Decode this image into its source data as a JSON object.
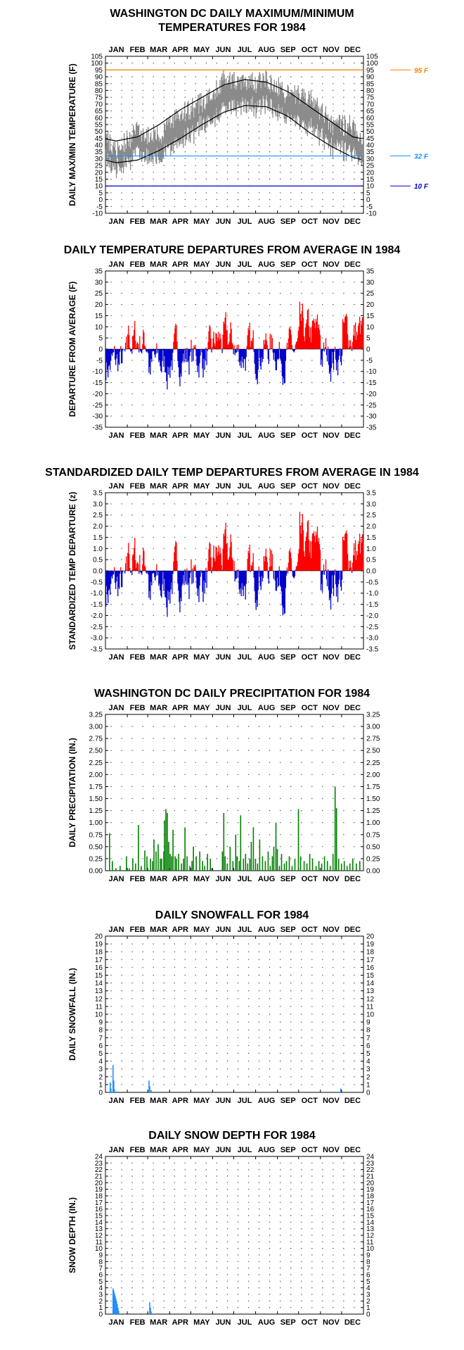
{
  "chart_data": [
    {
      "id": "maxmin",
      "type": "line",
      "title_lines": [
        "WASHINGTON DC DAILY MAXIMUM/MINIMUM",
        "TEMPERATURES FOR 1984"
      ],
      "ylabel": "DAILY MAX/MIN TEMPERATURE (F)",
      "months": [
        "JAN",
        "FEB",
        "MAR",
        "APR",
        "MAY",
        "JUN",
        "JUL",
        "AUG",
        "SEP",
        "OCT",
        "NOV",
        "DEC"
      ],
      "ylim": [
        -10,
        105
      ],
      "ystep": 5,
      "grid": "dotted",
      "ref_lines": [
        {
          "value": 95,
          "label": "95 F",
          "color": "#ff7f00"
        },
        {
          "value": 32,
          "label": "32 F",
          "color": "#1e90ff"
        },
        {
          "value": 10,
          "label": "10 F",
          "color": "#0000cd"
        }
      ],
      "normal_max_monthly": [
        43,
        46,
        55,
        66,
        75,
        84,
        88,
        86,
        79,
        68,
        57,
        46
      ],
      "normal_min_monthly": [
        27,
        29,
        36,
        45,
        55,
        64,
        69,
        68,
        61,
        49,
        39,
        31
      ],
      "daily_max_monthly_mean": [
        36,
        50,
        46,
        63,
        71,
        88,
        85,
        87,
        77,
        75,
        55,
        54
      ],
      "daily_min_monthly_mean": [
        22,
        34,
        30,
        43,
        54,
        67,
        68,
        69,
        59,
        54,
        38,
        36
      ],
      "highest_max": 96,
      "lowest_min": 4
    },
    {
      "id": "departure",
      "type": "bar",
      "title_lines": [
        "DAILY TEMPERATURE DEPARTURES FROM AVERAGE IN 1984"
      ],
      "ylabel": "DEPARTURE FROM AVERAGE (F)",
      "months": [
        "JAN",
        "FEB",
        "MAR",
        "APR",
        "MAY",
        "JUN",
        "JUL",
        "AUG",
        "SEP",
        "OCT",
        "NOV",
        "DEC"
      ],
      "ylim": [
        -35,
        35
      ],
      "ystep": 5,
      "grid": "dotted",
      "colors": {
        "positive": "#ff0000",
        "negative": "#0000cd"
      },
      "monthly_mean_departure": [
        -7,
        4,
        -7,
        -3,
        -4,
        3,
        -2,
        1,
        -2,
        6,
        -3,
        7
      ],
      "max_positive": 24,
      "max_negative": -22
    },
    {
      "id": "standardized",
      "type": "bar",
      "title_lines": [
        "STANDARDIZED DAILY TEMP DEPARTURES FROM AVERAGE IN 1984"
      ],
      "ylabel": "STANDARDIZED TEMP DEPARTURE (z)",
      "months": [
        "JAN",
        "FEB",
        "MAR",
        "APR",
        "MAY",
        "JUN",
        "JUL",
        "AUG",
        "SEP",
        "OCT",
        "NOV",
        "DEC"
      ],
      "ylim": [
        -3.5,
        3.5
      ],
      "ystep": 0.5,
      "grid": "dotted",
      "colors": {
        "positive": "#ff0000",
        "negative": "#0000cd"
      },
      "monthly_mean_z": [
        -0.8,
        0.5,
        -0.8,
        -0.3,
        -0.4,
        0.6,
        -0.4,
        0.3,
        -0.4,
        0.9,
        -0.4,
        0.8
      ],
      "max_positive": 2.8,
      "max_negative": -2.5
    },
    {
      "id": "precip",
      "type": "bar",
      "title_lines": [
        "WASHINGTON DC DAILY PRECIPITATION FOR 1984"
      ],
      "ylabel": "DAILY PRECIPITATION (IN.)",
      "months": [
        "JAN",
        "FEB",
        "MAR",
        "APR",
        "MAY",
        "JUN",
        "JUL",
        "AUG",
        "SEP",
        "OCT",
        "NOV",
        "DEC"
      ],
      "ylim": [
        0,
        3.25
      ],
      "ystep": 0.25,
      "grid": "dotted",
      "color": "#008000",
      "events": [
        {
          "day": 5,
          "value": 0.78
        },
        {
          "day": 9,
          "value": 0.2
        },
        {
          "day": 14,
          "value": 0.05
        },
        {
          "day": 20,
          "value": 0.1
        },
        {
          "day": 29,
          "value": 0.3
        },
        {
          "day": 33,
          "value": 0.05
        },
        {
          "day": 38,
          "value": 0.25
        },
        {
          "day": 42,
          "value": 0.15
        },
        {
          "day": 46,
          "value": 0.95
        },
        {
          "day": 50,
          "value": 0.1
        },
        {
          "day": 55,
          "value": 0.42
        },
        {
          "day": 58,
          "value": 0.3
        },
        {
          "day": 63,
          "value": 0.25
        },
        {
          "day": 66,
          "value": 0.2
        },
        {
          "day": 68,
          "value": 0.65
        },
        {
          "day": 71,
          "value": 0.4
        },
        {
          "day": 74,
          "value": 0.55
        },
        {
          "day": 77,
          "value": 0.25
        },
        {
          "day": 79,
          "value": 0.25
        },
        {
          "day": 82,
          "value": 0.4
        },
        {
          "day": 83,
          "value": 1.05
        },
        {
          "day": 85,
          "value": 1.28
        },
        {
          "day": 87,
          "value": 1.2
        },
        {
          "day": 89,
          "value": 0.6
        },
        {
          "day": 91,
          "value": 0.35
        },
        {
          "day": 93,
          "value": 0.3
        },
        {
          "day": 95,
          "value": 0.85
        },
        {
          "day": 98,
          "value": 0.3
        },
        {
          "day": 100,
          "value": 0.25
        },
        {
          "day": 103,
          "value": 0.35
        },
        {
          "day": 107,
          "value": 0.15
        },
        {
          "day": 110,
          "value": 0.25
        },
        {
          "day": 112,
          "value": 0.9
        },
        {
          "day": 115,
          "value": 0.3
        },
        {
          "day": 119,
          "value": 0.1
        },
        {
          "day": 122,
          "value": 0.2
        },
        {
          "day": 124,
          "value": 0.5
        },
        {
          "day": 128,
          "value": 0.3
        },
        {
          "day": 133,
          "value": 0.4
        },
        {
          "day": 137,
          "value": 0.2
        },
        {
          "day": 140,
          "value": 0.1
        },
        {
          "day": 144,
          "value": 0.35
        },
        {
          "day": 148,
          "value": 0.25
        },
        {
          "day": 150,
          "value": 0.05
        },
        {
          "day": 165,
          "value": 0.4
        },
        {
          "day": 167,
          "value": 1.2
        },
        {
          "day": 169,
          "value": 0.3
        },
        {
          "day": 172,
          "value": 0.15
        },
        {
          "day": 176,
          "value": 0.5
        },
        {
          "day": 180,
          "value": 0.2
        },
        {
          "day": 184,
          "value": 0.75
        },
        {
          "day": 186,
          "value": 0.3
        },
        {
          "day": 189,
          "value": 0.2
        },
        {
          "day": 191,
          "value": 1.15
        },
        {
          "day": 195,
          "value": 0.25
        },
        {
          "day": 198,
          "value": 0.35
        },
        {
          "day": 201,
          "value": 0.15
        },
        {
          "day": 204,
          "value": 0.25
        },
        {
          "day": 206,
          "value": 0.6
        },
        {
          "day": 209,
          "value": 0.9
        },
        {
          "day": 212,
          "value": 0.25
        },
        {
          "day": 215,
          "value": 0.15
        },
        {
          "day": 218,
          "value": 0.65
        },
        {
          "day": 222,
          "value": 0.3
        },
        {
          "day": 226,
          "value": 0.2
        },
        {
          "day": 230,
          "value": 0.4
        },
        {
          "day": 233,
          "value": 0.1
        },
        {
          "day": 236,
          "value": 0.3
        },
        {
          "day": 238,
          "value": 0.5
        },
        {
          "day": 241,
          "value": 1.0
        },
        {
          "day": 243,
          "value": 0.45
        },
        {
          "day": 246,
          "value": 0.1
        },
        {
          "day": 249,
          "value": 0.35
        },
        {
          "day": 253,
          "value": 0.15
        },
        {
          "day": 256,
          "value": 0.2
        },
        {
          "day": 260,
          "value": 0.3
        },
        {
          "day": 264,
          "value": 0.1
        },
        {
          "day": 268,
          "value": 0.25
        },
        {
          "day": 273,
          "value": 1.28
        },
        {
          "day": 276,
          "value": 0.3
        },
        {
          "day": 281,
          "value": 0.2
        },
        {
          "day": 285,
          "value": 0.15
        },
        {
          "day": 289,
          "value": 0.35
        },
        {
          "day": 293,
          "value": 0.25
        },
        {
          "day": 298,
          "value": 0.1
        },
        {
          "day": 302,
          "value": 0.2
        },
        {
          "day": 306,
          "value": 0.15
        },
        {
          "day": 310,
          "value": 0.3
        },
        {
          "day": 314,
          "value": 0.2
        },
        {
          "day": 318,
          "value": 0.1
        },
        {
          "day": 322,
          "value": 0.35
        },
        {
          "day": 325,
          "value": 1.75
        },
        {
          "day": 327,
          "value": 1.3
        },
        {
          "day": 330,
          "value": 0.25
        },
        {
          "day": 334,
          "value": 0.15
        },
        {
          "day": 338,
          "value": 0.2
        },
        {
          "day": 342,
          "value": 0.1
        },
        {
          "day": 346,
          "value": 0.15
        },
        {
          "day": 350,
          "value": 0.25
        },
        {
          "day": 355,
          "value": 0.15
        },
        {
          "day": 360,
          "value": 0.2
        }
      ]
    },
    {
      "id": "snowfall",
      "type": "bar",
      "title_lines": [
        "DAILY SNOWFALL FOR 1984"
      ],
      "ylabel": "DAILY SNOWFALL (IN.)",
      "months": [
        "JAN",
        "FEB",
        "MAR",
        "APR",
        "MAY",
        "JUN",
        "JUL",
        "AUG",
        "SEP",
        "OCT",
        "NOV",
        "DEC"
      ],
      "ylim": [
        0,
        20
      ],
      "ystep": 1,
      "grid": "dotted",
      "color": "#1e90ff",
      "events": [
        {
          "day": 6,
          "value": 1.3
        },
        {
          "day": 7,
          "value": 0.5
        },
        {
          "day": 10,
          "value": 3.5
        },
        {
          "day": 11,
          "value": 1.5
        },
        {
          "day": 12,
          "value": 0.4
        },
        {
          "day": 61,
          "value": 1.5
        },
        {
          "day": 62,
          "value": 0.8
        },
        {
          "day": 64,
          "value": 0.3
        },
        {
          "day": 333,
          "value": 0.5
        }
      ]
    },
    {
      "id": "snowdepth",
      "type": "bar",
      "title_lines": [
        "DAILY SNOW DEPTH FOR 1984"
      ],
      "ylabel": "SNOW DEPTH (IN.)",
      "months": [
        "JAN",
        "FEB",
        "MAR",
        "APR",
        "MAY",
        "JUN",
        "JUL",
        "AUG",
        "SEP",
        "OCT",
        "NOV",
        "DEC"
      ],
      "ylim": [
        0,
        24
      ],
      "ystep": 1,
      "grid": "dotted",
      "color": "#1e90ff",
      "events": [
        {
          "day": 10,
          "value": 3.9
        },
        {
          "day": 11,
          "value": 3.6
        },
        {
          "day": 12,
          "value": 3.2
        },
        {
          "day": 13,
          "value": 2.8
        },
        {
          "day": 14,
          "value": 2.4
        },
        {
          "day": 15,
          "value": 2.0
        },
        {
          "day": 16,
          "value": 1.5
        },
        {
          "day": 17,
          "value": 1.0
        },
        {
          "day": 18,
          "value": 0.5
        },
        {
          "day": 62,
          "value": 1.8
        },
        {
          "day": 63,
          "value": 1.0
        },
        {
          "day": 64,
          "value": 0.4
        }
      ]
    }
  ]
}
